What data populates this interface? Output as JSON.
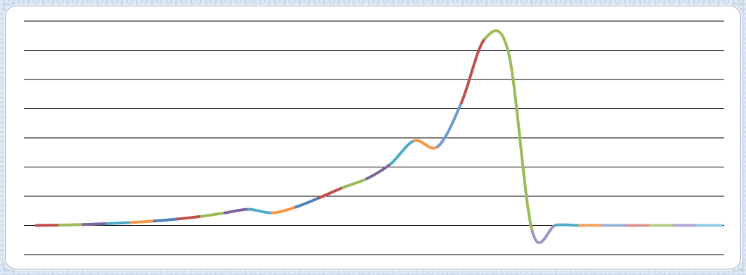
{
  "chart_data": {
    "type": "line",
    "title": "",
    "xlabel": "",
    "ylabel": "",
    "grid": true,
    "legend": "none",
    "ylim": [
      -1,
      7
    ],
    "gridlines": [
      -1,
      0,
      1,
      2,
      3,
      4,
      5,
      6,
      7
    ],
    "x": [
      0,
      1,
      2,
      3,
      4,
      5,
      6,
      7,
      8,
      9,
      10,
      11,
      12,
      13,
      14,
      15,
      16,
      17,
      18,
      19,
      20,
      21,
      22,
      23,
      24,
      25,
      26,
      27,
      28,
      29
    ],
    "values": [
      0,
      0.01,
      0.03,
      0.06,
      0.1,
      0.15,
      0.22,
      0.31,
      0.43,
      0.55,
      0.43,
      0.63,
      0.95,
      1.3,
      1.6,
      2.1,
      2.9,
      2.7,
      4.2,
      6.4,
      5.9,
      -0.2,
      0.01,
      0,
      0,
      0,
      0,
      0,
      0,
      0
    ],
    "segment_colors": [
      "#c0504d",
      "#9bbb59",
      "#8064a2",
      "#4bacc6",
      "#f79646",
      "#4f81bd",
      "#c0504d",
      "#9bbb59",
      "#8064a2",
      "#4bacc6",
      "#f79646",
      "#4f81bd",
      "#c0504d",
      "#9bbb59",
      "#8064a2",
      "#4bacc6",
      "#f79646",
      "#6f9bd1",
      "#c0504d",
      "#9bbb59",
      "#9bbb59",
      "#a593c2",
      "#4bacc6",
      "#f7a25d",
      "#95b3d7",
      "#d99694",
      "#b3cf86",
      "#b4a7d6",
      "#8ecbdc",
      "#f4b183"
    ]
  }
}
